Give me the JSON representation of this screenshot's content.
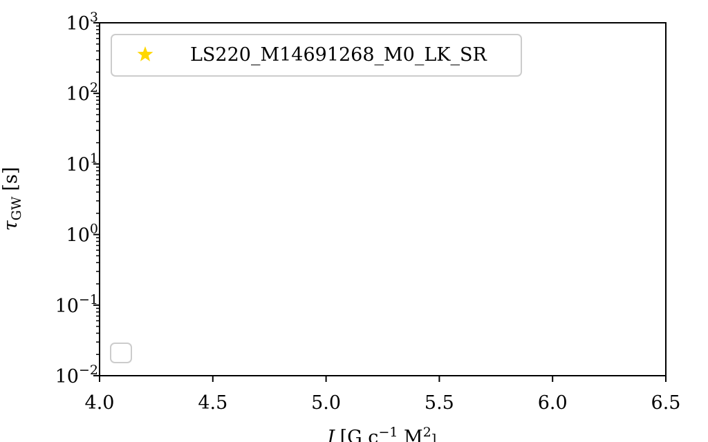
{
  "chart_data": {
    "type": "scatter",
    "title": "",
    "xlabel_main": "J",
    "xlabel_units": "[G c",
    "xlabel_units_exp": "−1",
    "xlabel_units_tail": " M",
    "xlabel_units_tail_exp": "2",
    "xlabel_units_tail_sub": "⊙",
    "xlabel_close": "]",
    "ylabel_main": "τ",
    "ylabel_sub": "GW",
    "ylabel_units": "[s]",
    "xlim": [
      4.0,
      6.5
    ],
    "ylim": [
      0.01,
      1000
    ],
    "yscale": "log",
    "grid": false,
    "legend_position": "top-left",
    "x_ticks": [
      {
        "value": 4.0,
        "label": "4.0"
      },
      {
        "value": 4.5,
        "label": "4.5"
      },
      {
        "value": 5.0,
        "label": "5.0"
      },
      {
        "value": 5.5,
        "label": "5.5"
      },
      {
        "value": 6.0,
        "label": "6.0"
      },
      {
        "value": 6.5,
        "label": "6.5"
      }
    ],
    "y_ticks": [
      {
        "value": 0.01,
        "base": "10",
        "exp": "−2"
      },
      {
        "value": 0.1,
        "base": "10",
        "exp": "−1"
      },
      {
        "value": 1,
        "base": "10",
        "exp": "0"
      },
      {
        "value": 10,
        "base": "10",
        "exp": "1"
      },
      {
        "value": 100,
        "base": "10",
        "exp": "2"
      },
      {
        "value": 1000,
        "base": "10",
        "exp": "3"
      }
    ],
    "series": [
      {
        "name": "LS220_M14691268_M0_LK_SR",
        "marker": "star",
        "color": "#FFD700",
        "points": []
      }
    ]
  }
}
